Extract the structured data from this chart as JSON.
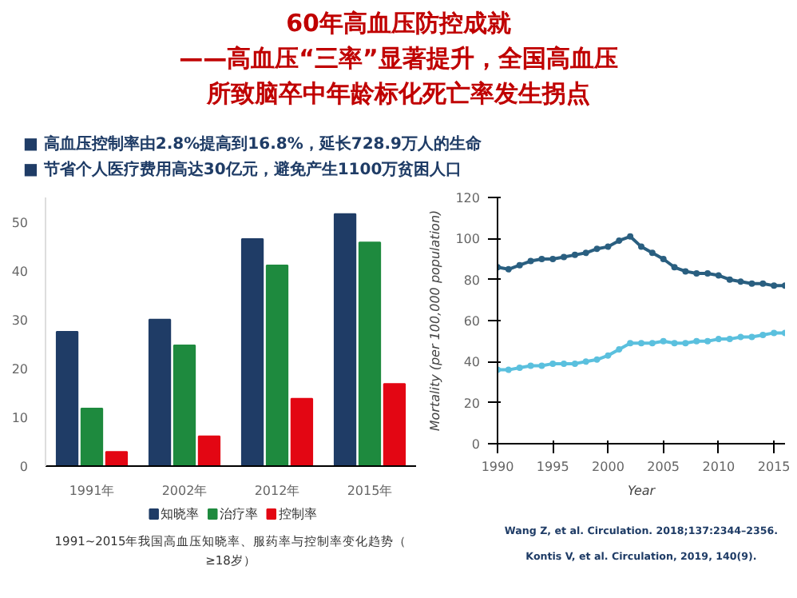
{
  "chart_data": [
    {
      "type": "bar",
      "title": "60年高血压防控成就",
      "subtitle": "——高血压“三率”显著提升，全国高血压所致脑卒中年龄标化死亡率发生拐点",
      "categories": [
        "1991年",
        "2002年",
        "2012年",
        "2015年"
      ],
      "series": [
        {
          "name": "知晓率",
          "color": "#1f3c66",
          "values": [
            27.5,
            30,
            46.5,
            51.6
          ]
        },
        {
          "name": "治疗率",
          "color": "#1e8a3e",
          "values": [
            11.8,
            24.7,
            41.1,
            45.8
          ]
        },
        {
          "name": "控制率",
          "color": "#e30613",
          "values": [
            2.9,
            6.1,
            13.8,
            16.8
          ]
        }
      ],
      "ylim": [
        0,
        55
      ],
      "yticks": [
        0,
        10,
        20,
        30,
        40,
        50
      ],
      "legend": "bottom",
      "grid": false,
      "annotations": [
        "■ 高血压控制率由2.8%提高到16.8%，延长728.9万人的生命",
        "■ 节省个人医疗费用高达30亿元，避免产生1100万贫困人口",
        "1991~2015年我国高血压知晓率、服药率与控制率变化趋势（≥18岁）"
      ]
    },
    {
      "type": "line",
      "xlabel": "Year",
      "ylabel": "Mortality (per 100,000 population)",
      "x": [
        1990,
        1991,
        1992,
        1993,
        1994,
        1995,
        1996,
        1997,
        1998,
        1999,
        2000,
        2001,
        2002,
        2003,
        2004,
        2005,
        2006,
        2007,
        2008,
        2009,
        2010,
        2011,
        2012,
        2013,
        2014,
        2015,
        2016
      ],
      "series": [
        {
          "color": "#2a5f80",
          "values": [
            86,
            85,
            87,
            89,
            90,
            90,
            91,
            92,
            93,
            95,
            96,
            99,
            101,
            96,
            93,
            90,
            86,
            84,
            83,
            83,
            82,
            80,
            79,
            78,
            78,
            77,
            77
          ]
        },
        {
          "color": "#5bc0de",
          "values": [
            36,
            36,
            37,
            38,
            38,
            39,
            39,
            39,
            40,
            41,
            43,
            46,
            49,
            49,
            49,
            50,
            49,
            49,
            50,
            50,
            51,
            51,
            52,
            52,
            53,
            54,
            54
          ]
        }
      ],
      "xlim": [
        1990,
        2016
      ],
      "xticks": [
        1990,
        1995,
        2000,
        2005,
        2010,
        2015
      ],
      "ylim": [
        0,
        120
      ],
      "yticks": [
        0,
        20,
        40,
        60,
        80,
        100,
        120
      ],
      "marker": "circle",
      "line_style": "solid",
      "grid": false,
      "annotations": [
        "Wang Z, et al. Circulation. 2018;137:2344–2356.",
        "Kontis V, et al. Circulation, 2019, 140(9)."
      ]
    }
  ]
}
